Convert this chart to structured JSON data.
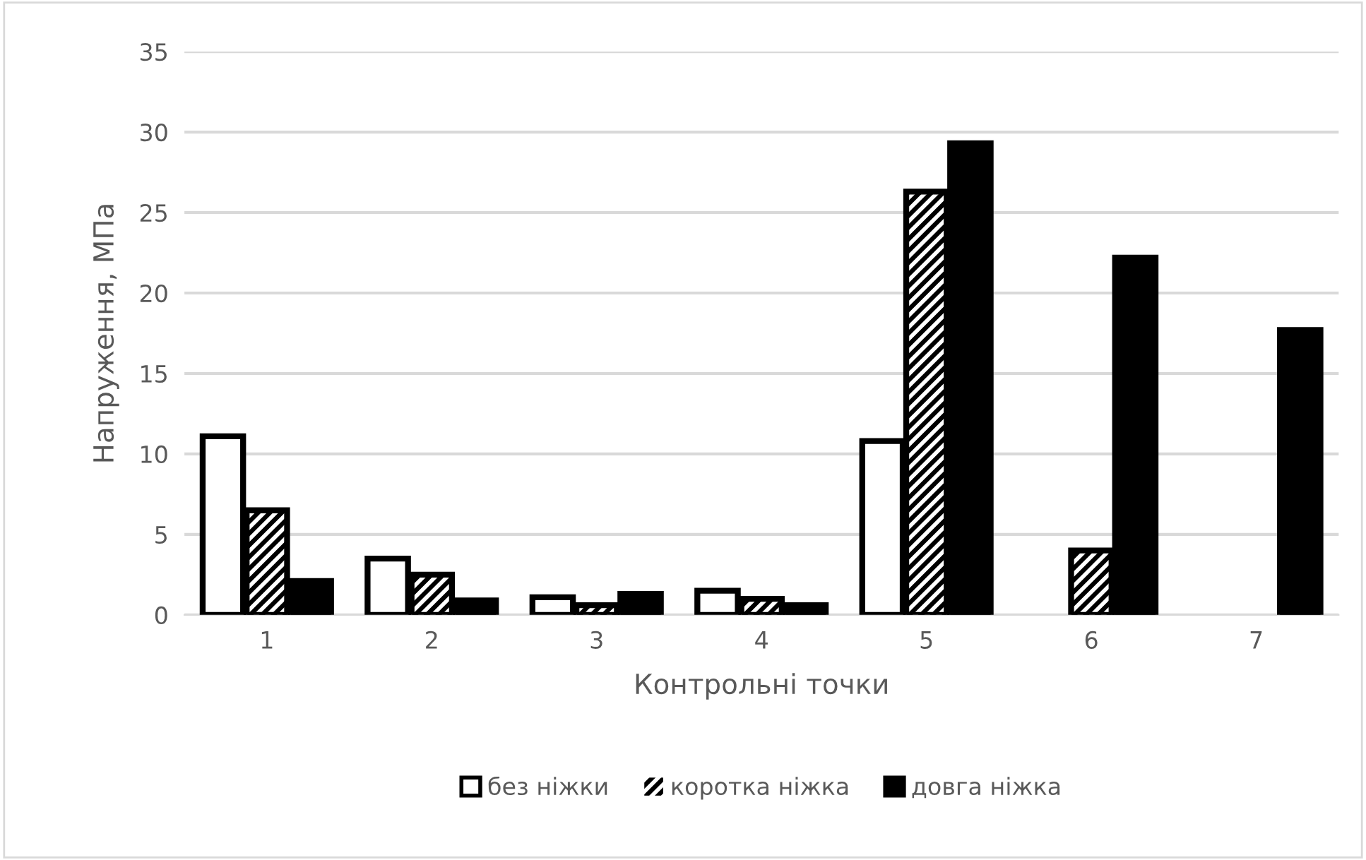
{
  "chart_data": {
    "type": "bar",
    "xlabel": "Контрольні точки",
    "ylabel": "Напруження, МПа",
    "categories": [
      "1",
      "2",
      "3",
      "4",
      "5",
      "6",
      "7"
    ],
    "series": [
      {
        "name": "без ніжки",
        "color": "#ffffff",
        "values": [
          11.1,
          3.5,
          1.1,
          1.5,
          10.8,
          null,
          null
        ]
      },
      {
        "name": "коротка ніжка",
        "color": "#000000",
        "values": [
          6.5,
          2.5,
          0.6,
          1.0,
          26.3,
          4.0,
          null
        ]
      },
      {
        "name": "довга ніжка",
        "color": "#000000",
        "values": [
          2.1,
          0.9,
          1.3,
          0.6,
          29.3,
          22.2,
          17.7
        ]
      }
    ],
    "ylim": [
      0,
      35
    ],
    "yticks": [
      0,
      5,
      10,
      15,
      20,
      25,
      30,
      35
    ],
    "grid": "y",
    "legend": "bottom"
  }
}
